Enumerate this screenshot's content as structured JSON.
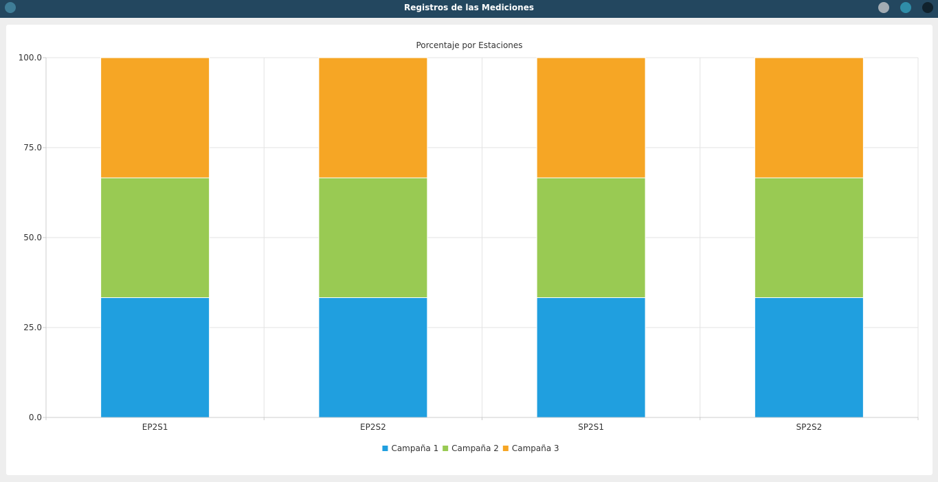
{
  "window": {
    "title": "Registros de las Mediciones"
  },
  "chart_data": {
    "type": "bar",
    "stacked": true,
    "title": "Porcentaje por Estaciones",
    "categories": [
      "EP2S1",
      "EP2S2",
      "SP2S1",
      "SP2S2"
    ],
    "series": [
      {
        "name": "Campaña 1",
        "color": "#209fdf",
        "values": [
          33.3,
          33.3,
          33.3,
          33.3
        ]
      },
      {
        "name": "Campaña 2",
        "color": "#99ca53",
        "values": [
          33.3,
          33.3,
          33.3,
          33.3
        ]
      },
      {
        "name": "Campaña 3",
        "color": "#f6a625",
        "values": [
          33.4,
          33.4,
          33.4,
          33.4
        ]
      }
    ],
    "ylim": [
      0,
      100
    ],
    "yticks": [
      "0.0",
      "25.0",
      "50.0",
      "75.0",
      "100.0"
    ],
    "xlabel": "",
    "ylabel": "",
    "grid": true,
    "legend_position": "bottom"
  }
}
